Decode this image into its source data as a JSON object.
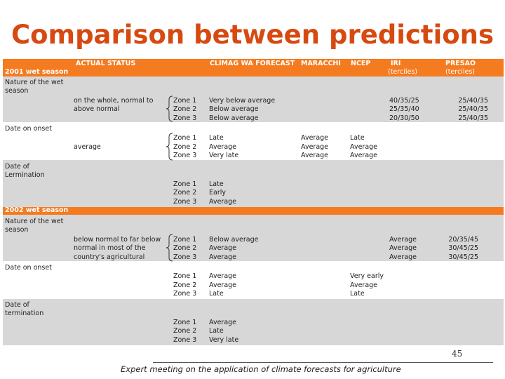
{
  "title": "Comparison between predictions",
  "headers": {
    "actual": "ACTUAL STATUS",
    "climag": "CLIMAG WA FORECAST",
    "maracchi": "MARACCHI",
    "ncep": "NCEP",
    "iri": "IRI",
    "iri_sub": "(terciles)",
    "presao": "PRESAO",
    "presao_sub": "(terciles)"
  },
  "season_2001": "2001 wet season",
  "season_2002": "2002 wet season",
  "labels": {
    "nature": [
      "Nature of the wet",
      "season"
    ],
    "onset": "Date on onset",
    "termination_2001": [
      "Date of",
      "Lermination"
    ],
    "termination_2002": [
      "Date of",
      "termination"
    ]
  },
  "zones": [
    "Zone 1",
    "Zone 2",
    "Zone 3"
  ],
  "s2001": {
    "nature_actual": [
      "on the whole, normal to",
      "above normal"
    ],
    "nature_climag": [
      "Very below average",
      "Below average",
      "Below average"
    ],
    "nature_iri": [
      "40/35/25",
      "25/35/40",
      "20/30/50"
    ],
    "nature_presao": [
      "25/40/35",
      "25/40/35",
      "25/40/35"
    ],
    "onset_actual": "average",
    "onset_climag": [
      "Late",
      "Average",
      "Very late"
    ],
    "onset_maracchi": [
      "Average",
      "Average",
      "Average"
    ],
    "onset_ncep": [
      "Late",
      "Average",
      "Average"
    ],
    "term_climag": [
      "Late",
      "Early",
      "Average"
    ]
  },
  "s2002": {
    "nature_actual": [
      "below normal to far below",
      "normal in most of the",
      "country's agricultural"
    ],
    "nature_climag": [
      "Below average",
      "Average",
      "Average"
    ],
    "nature_iri": [
      "Average",
      "Average",
      "Average"
    ],
    "nature_presao": [
      "20/35/45",
      "30/45/25",
      "30/45/25"
    ],
    "onset_climag": [
      "Average",
      "Average",
      "Late"
    ],
    "onset_ncep": [
      "Very early",
      "Average",
      "Late"
    ],
    "term_climag": [
      "Average",
      "Late",
      "Very late"
    ]
  },
  "page_number": "45",
  "footer": "Expert meeting on the application of climate forecasts for agriculture",
  "colors": {
    "title": "#d64a11",
    "header": "#f47b20",
    "row_gray": "#d7d7d7"
  }
}
